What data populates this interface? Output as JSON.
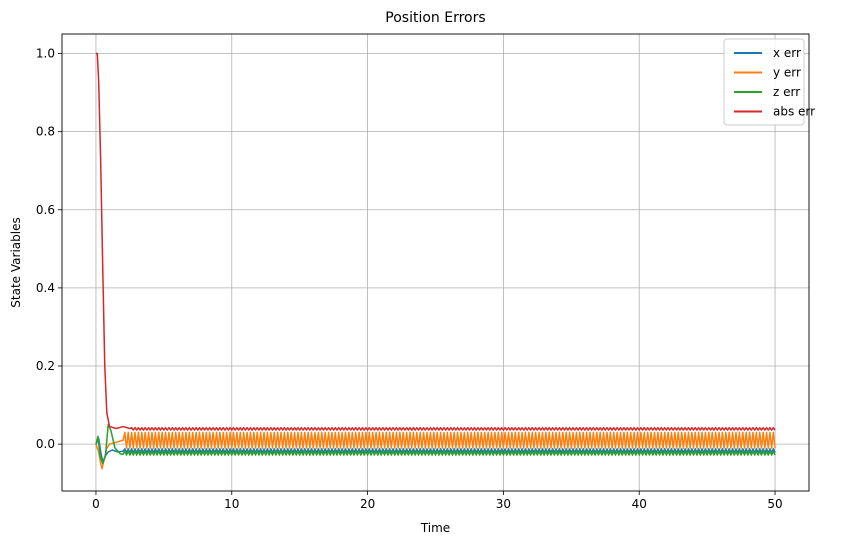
{
  "chart_data": {
    "type": "line",
    "title": "Position Errors",
    "xlabel": "Time",
    "ylabel": "State Variables",
    "xlim": [
      -2.5,
      52.5
    ],
    "ylim": [
      -0.12,
      1.05
    ],
    "xticks": [
      0,
      10,
      20,
      30,
      40,
      50
    ],
    "xtick_labels": [
      "0",
      "10",
      "20",
      "30",
      "40",
      "50"
    ],
    "yticks": [
      0.0,
      0.2,
      0.4,
      0.6,
      0.8,
      1.0
    ],
    "ytick_labels": [
      "0.0",
      "0.2",
      "0.4",
      "0.6",
      "0.8",
      "1.0"
    ],
    "grid": true,
    "legend_position": "top-right",
    "series": [
      {
        "name": "x err",
        "color": "#1f77b4",
        "transient": [
          [
            0,
            0.0
          ],
          [
            0.2,
            0.015
          ],
          [
            0.35,
            -0.02
          ],
          [
            0.5,
            -0.045
          ],
          [
            0.7,
            -0.03
          ],
          [
            0.9,
            -0.02
          ],
          [
            1.2,
            -0.015
          ],
          [
            1.6,
            -0.02
          ],
          [
            2.0,
            -0.018
          ]
        ],
        "steady": {
          "t_start": 2.0,
          "t_end": 50,
          "period": 0.25,
          "low": -0.022,
          "high": -0.012
        }
      },
      {
        "name": "y err",
        "color": "#ff7f0e",
        "transient": [
          [
            0,
            0.0
          ],
          [
            0.2,
            -0.02
          ],
          [
            0.35,
            -0.05
          ],
          [
            0.45,
            -0.063
          ],
          [
            0.6,
            -0.04
          ],
          [
            0.8,
            -0.01
          ],
          [
            1.0,
            0.0
          ],
          [
            1.5,
            0.005
          ],
          [
            2.0,
            0.01
          ]
        ],
        "steady": {
          "t_start": 2.0,
          "t_end": 50,
          "period": 0.25,
          "low": -0.01,
          "high": 0.03
        }
      },
      {
        "name": "z err",
        "color": "#2ca02c",
        "transient": [
          [
            0,
            0.0
          ],
          [
            0.15,
            0.02
          ],
          [
            0.3,
            -0.03
          ],
          [
            0.5,
            -0.05
          ],
          [
            0.7,
            -0.03
          ],
          [
            0.9,
            0.05
          ],
          [
            1.1,
            0.035
          ],
          [
            1.4,
            -0.01
          ],
          [
            1.8,
            -0.025
          ],
          [
            2.0,
            -0.026
          ]
        ],
        "steady": {
          "t_start": 2.0,
          "t_end": 50,
          "period": 0.25,
          "low": -0.028,
          "high": -0.018
        }
      },
      {
        "name": "abs err",
        "color": "#d62728",
        "transient": [
          [
            0,
            1.0
          ],
          [
            0.1,
            1.0
          ],
          [
            0.2,
            0.93
          ],
          [
            0.35,
            0.72
          ],
          [
            0.5,
            0.45
          ],
          [
            0.65,
            0.2
          ],
          [
            0.8,
            0.08
          ],
          [
            1.0,
            0.045
          ],
          [
            1.5,
            0.04
          ],
          [
            2.0,
            0.045
          ],
          [
            2.5,
            0.04
          ]
        ],
        "steady": {
          "t_start": 2.5,
          "t_end": 50,
          "period": 0.25,
          "low": 0.036,
          "high": 0.042
        }
      }
    ]
  }
}
